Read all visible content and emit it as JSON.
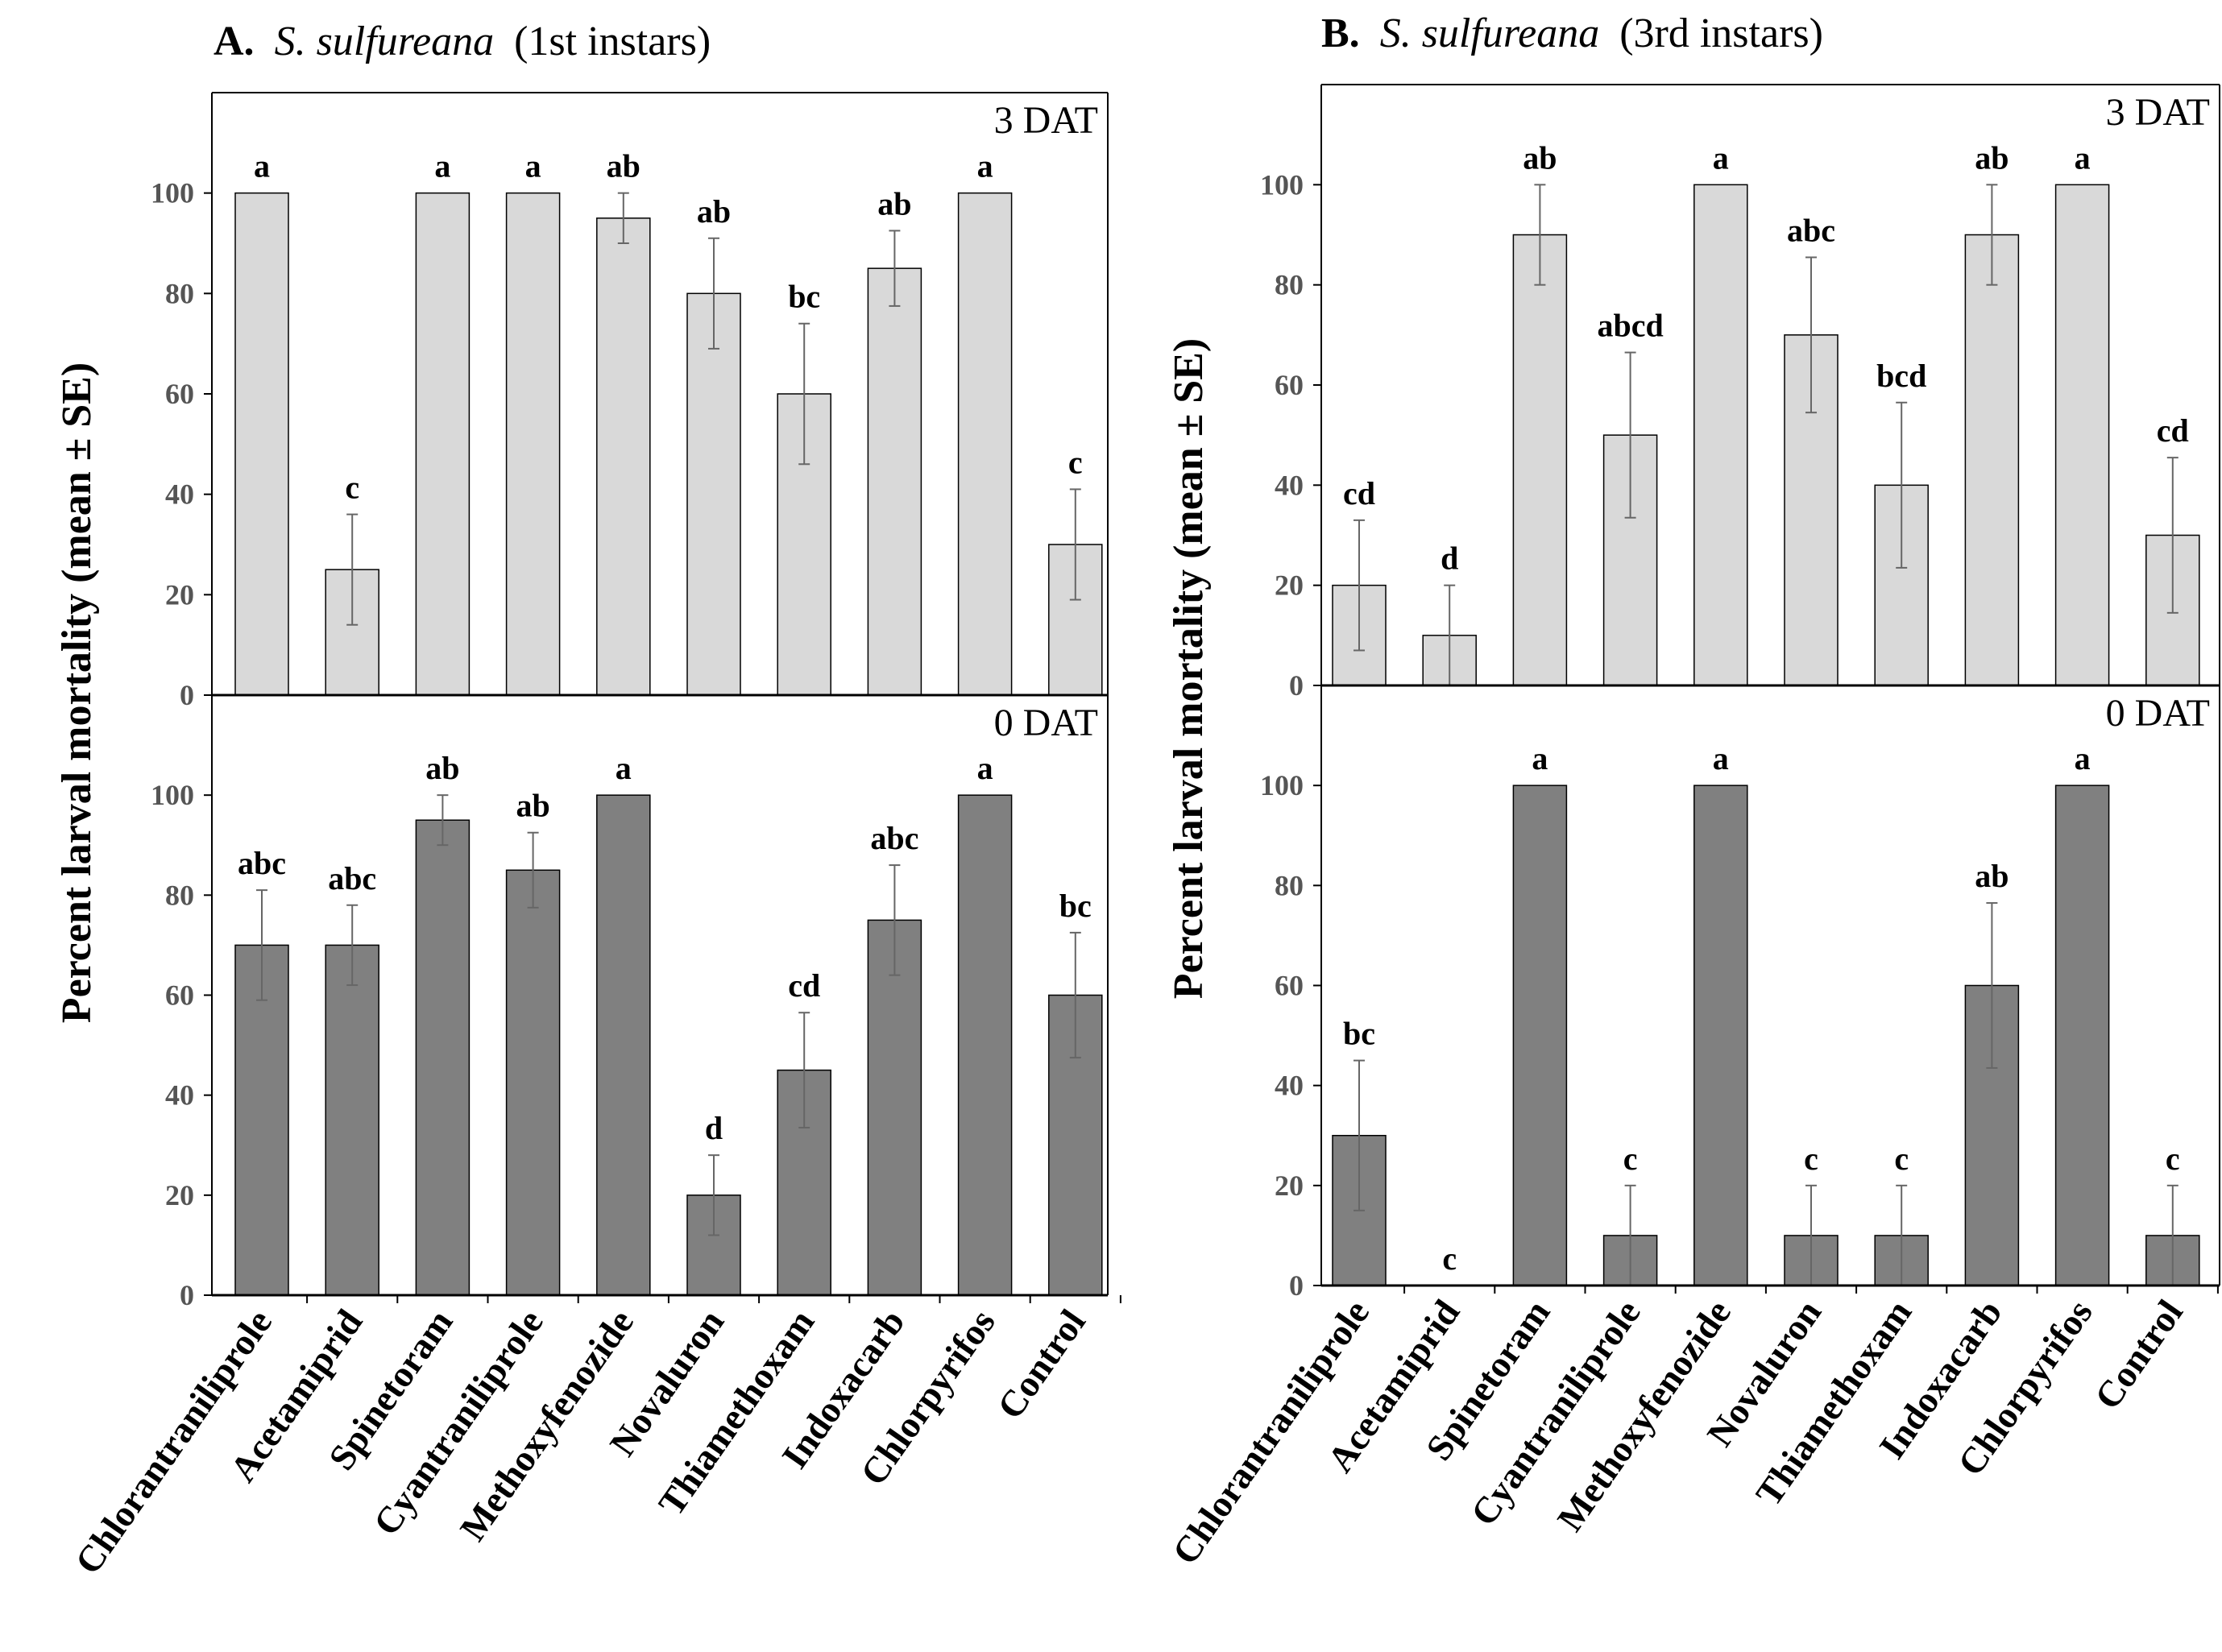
{
  "y_axis_label": "Percent larval mortality (mean ± SE)",
  "colors": {
    "three_dat_bar": "#d9d9d9",
    "zero_dat_bar": "#808080",
    "axis": "#000000",
    "tick_text": "#555555",
    "error_bar": "#666666"
  },
  "chart_data": [
    {
      "id": "A",
      "type": "bar",
      "title_prefix": "A.",
      "title_species": "S. sulfureana",
      "title_stage": "(1st instars)",
      "ylabel": "Percent larval mortality (mean ± SE)",
      "categories": [
        "Chlorantraniliprole",
        "Acetamiprid",
        "Spinetoram",
        "Cyantraniliprole",
        "Methoxyfenozide",
        "Novaluron",
        "Thiamethoxam",
        "Indoxacarb",
        "Chlorpyrifos",
        "Control"
      ],
      "panels": [
        {
          "label": "3 DAT",
          "ylim": [
            0,
            120
          ],
          "yticks": [
            0,
            20,
            40,
            60,
            80,
            100
          ],
          "values": [
            100,
            25,
            100,
            100,
            95,
            80,
            60,
            85,
            100,
            30
          ],
          "errors": [
            0,
            11,
            0,
            0,
            5,
            11,
            14,
            7.5,
            0,
            11
          ],
          "letters": [
            "a",
            "c",
            "a",
            "a",
            "ab",
            "ab",
            "bc",
            "ab",
            "a",
            "c"
          ]
        },
        {
          "label": "0 DAT",
          "ylim": [
            0,
            120
          ],
          "yticks": [
            0,
            20,
            40,
            60,
            80,
            100
          ],
          "values": [
            70,
            70,
            95,
            85,
            100,
            20,
            45,
            75,
            100,
            60
          ],
          "errors": [
            11,
            8,
            5,
            7.5,
            0,
            8,
            11.5,
            11,
            0,
            12.5
          ],
          "letters": [
            "abc",
            "abc",
            "ab",
            "ab",
            "a",
            "d",
            "cd",
            "abc",
            "a",
            "bc"
          ]
        }
      ]
    },
    {
      "id": "B",
      "type": "bar",
      "title_prefix": "B.",
      "title_species": "S. sulfureana",
      "title_stage": "(3rd instars)",
      "ylabel": "Percent larval mortality (mean ± SE)",
      "categories": [
        "Chlorantraniliprole",
        "Acetamiprid",
        "Spinetoram",
        "Cyantraniliprole",
        "Methoxyfenozide",
        "Novaluron",
        "Thiamethoxam",
        "Indoxacarb",
        "Chlorpyrifos",
        "Control"
      ],
      "panels": [
        {
          "label": "3 DAT",
          "ylim": [
            0,
            120
          ],
          "yticks": [
            0,
            20,
            40,
            60,
            80,
            100
          ],
          "values": [
            20,
            10,
            90,
            50,
            100,
            70,
            40,
            90,
            100,
            30
          ],
          "errors": [
            13,
            10,
            10,
            16.5,
            0,
            15.5,
            16.5,
            10,
            0,
            15.5
          ],
          "letters": [
            "cd",
            "d",
            "ab",
            "abcd",
            "a",
            "abc",
            "bcd",
            "ab",
            "a",
            "cd"
          ]
        },
        {
          "label": "0 DAT",
          "ylim": [
            0,
            120
          ],
          "yticks": [
            0,
            20,
            40,
            60,
            80,
            100
          ],
          "values": [
            30,
            0,
            100,
            10,
            100,
            10,
            10,
            60,
            100,
            10
          ],
          "errors": [
            15,
            0,
            0,
            10,
            0,
            10,
            10,
            16.5,
            0,
            10
          ],
          "letters": [
            "bc",
            "c",
            "a",
            "c",
            "a",
            "c",
            "c",
            "ab",
            "a",
            "c"
          ]
        }
      ]
    }
  ]
}
